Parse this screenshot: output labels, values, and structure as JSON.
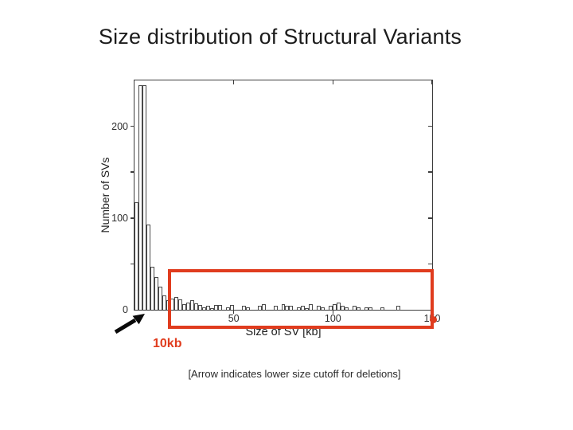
{
  "slide": {
    "title": "Size distribution of Structural Variants",
    "caption": "[Arrow indicates lower size cutoff for deletions]"
  },
  "chart_data": {
    "type": "bar",
    "title": "Size distribution of Structural Variants",
    "xlabel": "Size of SV [kb]",
    "ylabel": "Number of SVs",
    "xlim": [
      0,
      150
    ],
    "ylim": [
      0,
      250
    ],
    "grid": false,
    "legend": null,
    "bar_outline_color": "#4a4a4a",
    "bin_start_kb": 0,
    "bin_width_kb": 2,
    "xticks": [
      {
        "value": 50,
        "label": "50"
      },
      {
        "value": 100,
        "label": "100"
      },
      {
        "value": 150,
        "label": "150"
      }
    ],
    "yticks": [
      {
        "value": 0,
        "label": "0"
      },
      {
        "value": 50,
        "label": ""
      },
      {
        "value": 100,
        "label": "100"
      },
      {
        "value": 150,
        "label": ""
      },
      {
        "value": 200,
        "label": "200"
      }
    ],
    "values": [
      117,
      245,
      245,
      93,
      47,
      36,
      25,
      16,
      10,
      12,
      14,
      11,
      6,
      8,
      10,
      7,
      5,
      3,
      4,
      2,
      5,
      5,
      0,
      3,
      5,
      0,
      0,
      4,
      3,
      0,
      0,
      4,
      6,
      0,
      0,
      4,
      0,
      6,
      4,
      4,
      0,
      3,
      4,
      2,
      6,
      0,
      4,
      3,
      0,
      4,
      6,
      8,
      4,
      3,
      0,
      4,
      3,
      0,
      3,
      3,
      0,
      0,
      3,
      0,
      0,
      0,
      4,
      0,
      0,
      0,
      0,
      0,
      0,
      0,
      0
    ]
  },
  "annotations": {
    "highlight_box": {
      "color": "#e03c1e",
      "x_from_kb": 17,
      "x_to_kb": 151,
      "y_top_count": 44
    },
    "cutoff_label": "10kb",
    "cutoff_color": "#e03c1e",
    "arrow_icon": "black-northeast-arrow"
  }
}
